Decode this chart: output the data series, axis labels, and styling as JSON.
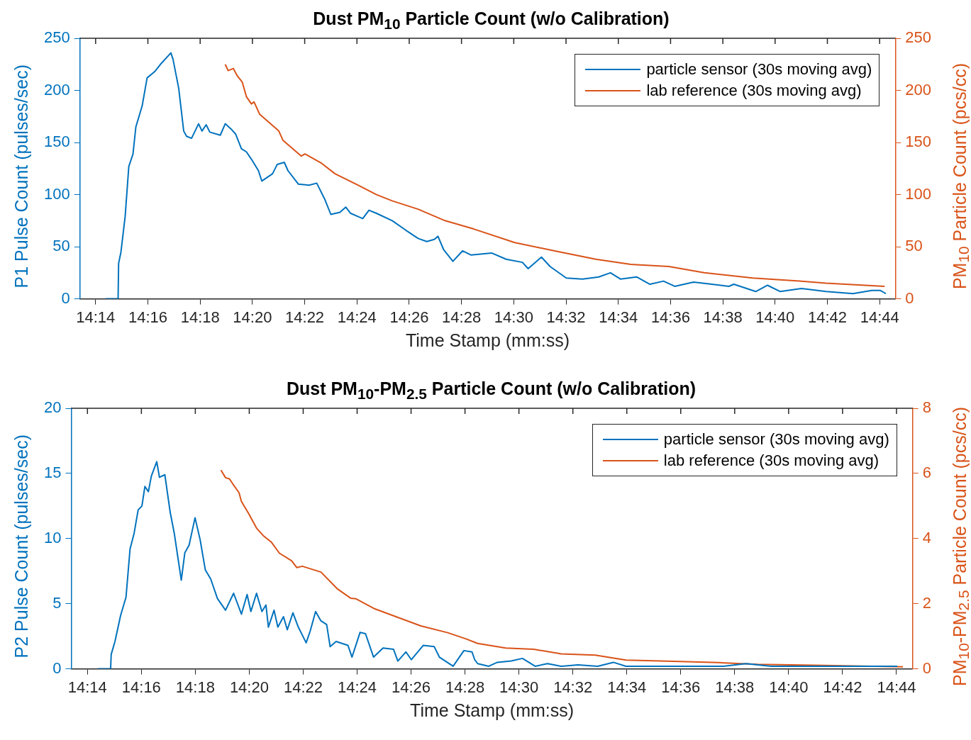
{
  "chart_data": [
    {
      "type": "line",
      "title": "Dust PM$_{10}$ Particle Count (w/o Calibration)",
      "xlabel": "Time Stamp (mm:ss)",
      "ylabel": "P1 Pulse Count (pulses/sec)",
      "y2label": "PM$_{10}$ Particle Count (pcs/cc)",
      "xlim": [
        853.4,
        884.6
      ],
      "xticks": [
        {
          "value": 854,
          "label": "14:14"
        },
        {
          "value": 856,
          "label": "14:16"
        },
        {
          "value": 858,
          "label": "14:18"
        },
        {
          "value": 860,
          "label": "14:20"
        },
        {
          "value": 862,
          "label": "14:22"
        },
        {
          "value": 864,
          "label": "14:24"
        },
        {
          "value": 866,
          "label": "14:26"
        },
        {
          "value": 868,
          "label": "14:28"
        },
        {
          "value": 870,
          "label": "14:30"
        },
        {
          "value": 872,
          "label": "14:32"
        },
        {
          "value": 874,
          "label": "14:34"
        },
        {
          "value": 876,
          "label": "14:36"
        },
        {
          "value": 878,
          "label": "14:38"
        },
        {
          "value": 880,
          "label": "14:40"
        },
        {
          "value": 882,
          "label": "14:42"
        },
        {
          "value": 884,
          "label": "14:44"
        }
      ],
      "ylim": [
        0,
        250
      ],
      "yticks": [
        0,
        50,
        100,
        150,
        200,
        250
      ],
      "y2lim": [
        0,
        250
      ],
      "y2ticks": [
        0,
        50,
        100,
        150,
        200,
        250
      ],
      "legend": "top right",
      "marker": "none",
      "line_style": "solid",
      "series": [
        {
          "name": "particle sensor (30s moving avg)",
          "color": "#0072bd",
          "x": [
            854.38,
            854.86,
            854.88,
            854.97,
            855.13,
            855.27,
            855.43,
            855.54,
            855.78,
            855.97,
            856.26,
            856.48,
            856.88,
            856.96,
            857.18,
            857.37,
            857.48,
            857.67,
            857.94,
            858.07,
            858.23,
            858.37,
            858.77,
            858.96,
            859.18,
            859.36,
            859.58,
            859.77,
            859.96,
            860.23,
            860.36,
            860.77,
            860.95,
            861.22,
            861.36,
            861.76,
            862.17,
            862.46,
            862.76,
            863.0,
            863.35,
            863.57,
            863.76,
            864.22,
            864.46,
            864.75,
            865.35,
            865.86,
            866.34,
            866.67,
            866.96,
            867.1,
            867.32,
            867.67,
            868.04,
            868.37,
            869.15,
            869.71,
            870.33,
            870.55,
            871.06,
            871.39,
            872.01,
            872.63,
            873.25,
            873.7,
            874.08,
            874.7,
            875.21,
            875.73,
            876.16,
            876.88,
            877.58,
            878.23,
            878.42,
            879.26,
            879.71,
            880.2,
            881.01,
            881.95,
            882.98,
            883.7,
            884.03,
            884.24
          ],
          "values": [
            0,
            0,
            34,
            45,
            79,
            127,
            139,
            165,
            185,
            212,
            218,
            225,
            236,
            230,
            202,
            161,
            156,
            154,
            168,
            161,
            167,
            160,
            157,
            168,
            163,
            158,
            144,
            141,
            134,
            123,
            113,
            120,
            129,
            131,
            123,
            110,
            109,
            111,
            96,
            81,
            83,
            88,
            82,
            77,
            85,
            82,
            75,
            66,
            58,
            55,
            57,
            60,
            47,
            36,
            46,
            42,
            44,
            38,
            35,
            29,
            40,
            31,
            20,
            19,
            21,
            25,
            19,
            21,
            14,
            17,
            12,
            16,
            14,
            12,
            14,
            7,
            13,
            7,
            10,
            7,
            5,
            8,
            8,
            5
          ]
        },
        {
          "name": "lab reference (30s moving avg)",
          "color": "#d95319",
          "axis": "y2",
          "x": [
            858.96,
            859.07,
            859.27,
            859.42,
            859.61,
            859.77,
            859.96,
            860.06,
            860.28,
            861.01,
            861.17,
            861.87,
            862.01,
            862.65,
            863.16,
            864.05,
            864.75,
            865.35,
            866.34,
            867.37,
            868.47,
            870.04,
            871.57,
            873.14,
            874.48,
            875.94,
            877.29,
            879.15,
            880.93,
            881.95,
            884.19
          ],
          "values": [
            225,
            219,
            221,
            214,
            208,
            194,
            187,
            189,
            177,
            161,
            152,
            137,
            139,
            130,
            120,
            109,
            100,
            94,
            86,
            75,
            67,
            54,
            46,
            38,
            33,
            31,
            25,
            20,
            17,
            15,
            12
          ]
        }
      ]
    },
    {
      "type": "line",
      "title": "Dust PM$_{10}$-PM$_{2.5}$ Particle Count (w/o Calibration)",
      "xlabel": "Time Stamp (mm:ss)",
      "ylabel": "P2 Pulse Count (pulses/sec)",
      "y2label": "PM$_{10}$-PM$_{2.5}$ Particle Count (pcs/cc)",
      "xlim": [
        853.4,
        884.6
      ],
      "xticks": [
        {
          "value": 854,
          "label": "14:14"
        },
        {
          "value": 856,
          "label": "14:16"
        },
        {
          "value": 858,
          "label": "14:18"
        },
        {
          "value": 860,
          "label": "14:20"
        },
        {
          "value": 862,
          "label": "14:22"
        },
        {
          "value": 864,
          "label": "14:24"
        },
        {
          "value": 866,
          "label": "14:26"
        },
        {
          "value": 868,
          "label": "14:28"
        },
        {
          "value": 870,
          "label": "14:30"
        },
        {
          "value": 872,
          "label": "14:32"
        },
        {
          "value": 874,
          "label": "14:34"
        },
        {
          "value": 876,
          "label": "14:36"
        },
        {
          "value": 878,
          "label": "14:38"
        },
        {
          "value": 880,
          "label": "14:40"
        },
        {
          "value": 882,
          "label": "14:42"
        },
        {
          "value": 884,
          "label": "14:44"
        }
      ],
      "ylim": [
        0,
        20
      ],
      "yticks": [
        0,
        5,
        10,
        15,
        20
      ],
      "y2lim": [
        0,
        8
      ],
      "y2ticks": [
        0,
        2,
        4,
        6,
        8
      ],
      "legend": "top right",
      "marker": "none",
      "line_style": "solid",
      "series": [
        {
          "name": "particle sensor (30s moving avg)",
          "color": "#0072bd",
          "x": [
            854.38,
            854.86,
            854.88,
            855.02,
            855.23,
            855.43,
            855.58,
            855.73,
            855.88,
            856.02,
            856.13,
            856.26,
            856.37,
            856.57,
            856.67,
            856.87,
            857.07,
            857.22,
            857.48,
            857.61,
            857.77,
            857.99,
            858.18,
            858.37,
            858.57,
            858.82,
            859.12,
            859.42,
            859.71,
            859.92,
            860.06,
            860.27,
            860.47,
            860.62,
            860.71,
            860.92,
            861.06,
            861.27,
            861.41,
            861.62,
            861.82,
            862.11,
            862.26,
            862.46,
            862.65,
            862.87,
            863.0,
            863.22,
            863.66,
            863.81,
            864.11,
            864.31,
            864.61,
            864.96,
            865.35,
            865.51,
            865.81,
            866.01,
            866.45,
            866.86,
            867.05,
            867.56,
            867.96,
            868.26,
            868.36,
            868.47,
            868.88,
            869.2,
            869.71,
            870.13,
            870.6,
            871.06,
            871.57,
            872.19,
            872.92,
            873.5,
            873.97,
            875.11,
            875.73,
            877.58,
            878.42,
            879.36,
            884.03
          ],
          "values": [
            0,
            0,
            1.1,
            2.1,
            4.1,
            5.5,
            9.2,
            10.4,
            12.2,
            12.5,
            14.0,
            13.6,
            14.8,
            15.9,
            14.7,
            14.9,
            12.0,
            10.4,
            6.8,
            8.9,
            9.5,
            11.6,
            9.9,
            7.6,
            6.9,
            5.4,
            4.5,
            5.8,
            4.2,
            5.7,
            4.4,
            5.8,
            4.4,
            4.9,
            3.2,
            4.5,
            3.2,
            4.0,
            3.0,
            4.3,
            3.2,
            2.0,
            2.9,
            4.4,
            3.7,
            3.4,
            1.7,
            2.1,
            1.8,
            0.9,
            2.8,
            2.7,
            0.9,
            1.6,
            1.5,
            0.6,
            1.3,
            0.7,
            1.8,
            1.7,
            0.9,
            0.2,
            1.4,
            1.3,
            0.7,
            0.4,
            0.2,
            0.5,
            0.6,
            0.8,
            0.2,
            0.4,
            0.2,
            0.3,
            0.2,
            0.5,
            0.2,
            0.2,
            0.2,
            0.2,
            0.4,
            0.2,
            0.2
          ]
        },
        {
          "name": "lab reference (30s moving avg)",
          "color": "#d95319",
          "axis": "y2",
          "x": [
            858.95,
            859.12,
            859.27,
            859.42,
            859.62,
            859.71,
            859.97,
            860.27,
            860.52,
            860.82,
            861.12,
            861.57,
            861.76,
            861.97,
            862.66,
            863.26,
            863.76,
            863.96,
            864.66,
            865.35,
            866.36,
            867.36,
            868.04,
            868.47,
            869.51,
            870.55,
            871.57,
            872.83,
            873.97,
            875.73,
            877.4,
            878.85,
            880.91,
            884.24
          ],
          "values": [
            6.1,
            5.87,
            5.83,
            5.64,
            5.41,
            5.14,
            4.78,
            4.32,
            4.09,
            3.89,
            3.55,
            3.32,
            3.11,
            3.15,
            2.97,
            2.46,
            2.17,
            2.15,
            1.84,
            1.63,
            1.32,
            1.11,
            0.92,
            0.78,
            0.64,
            0.6,
            0.46,
            0.42,
            0.27,
            0.23,
            0.19,
            0.14,
            0.11,
            0.06
          ]
        }
      ]
    }
  ]
}
